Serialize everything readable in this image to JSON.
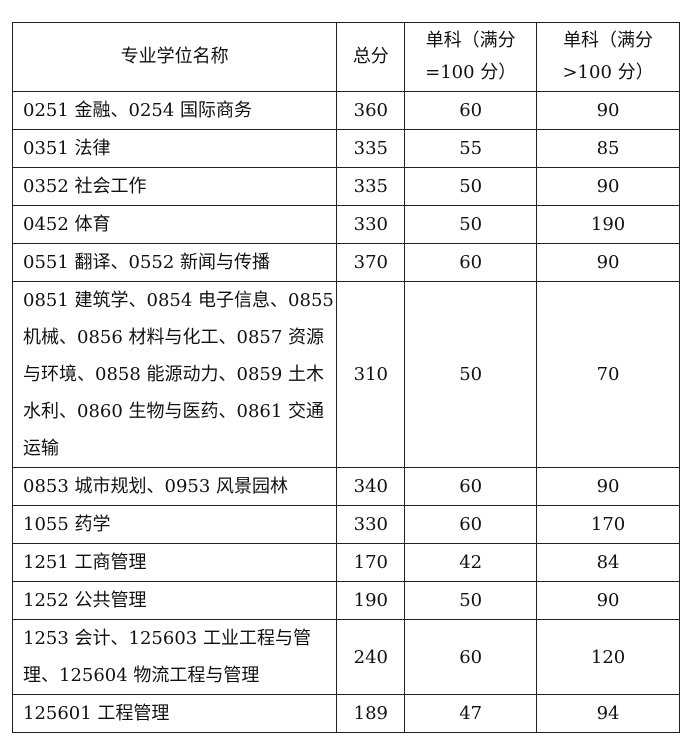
{
  "headers": [
    "专业学位名称",
    "总分",
    "单科（满分=100 分）",
    "单科（满分>100 分）"
  ],
  "rows": [
    {
      "name": "0251 金融、0254 国际商务",
      "total": "360",
      "single100": "60",
      "singleOver100": "90"
    },
    {
      "name": "0351 法律",
      "total": "335",
      "single100": "55",
      "singleOver100": "85"
    },
    {
      "name": "0352 社会工作",
      "total": "335",
      "single100": "50",
      "singleOver100": "90"
    },
    {
      "name": "0452 体育",
      "total": "330",
      "single100": "50",
      "singleOver100": "190"
    },
    {
      "name": "0551 翻译、0552 新闻与传播",
      "total": "370",
      "single100": "60",
      "singleOver100": "90"
    },
    {
      "name": "0851 建筑学、0854 电子信息、0855 机械、0856 材料与化工、0857 资源与环境、0858 能源动力、0859 土木水利、0860 生物与医药、0861 交通运输",
      "total": "310",
      "single100": "50",
      "singleOver100": "70"
    },
    {
      "name": "0853 城市规划、0953 风景园林",
      "total": "340",
      "single100": "60",
      "singleOver100": "90"
    },
    {
      "name": "1055 药学",
      "total": "330",
      "single100": "60",
      "singleOver100": "170"
    },
    {
      "name": "1251 工商管理",
      "total": "170",
      "single100": "42",
      "singleOver100": "84"
    },
    {
      "name": "1252 公共管理",
      "total": "190",
      "single100": "50",
      "singleOver100": "90"
    },
    {
      "name": "1253 会计、125603 工业工程与管理、125604 物流工程与管理",
      "total": "240",
      "single100": "60",
      "singleOver100": "120"
    },
    {
      "name": "125601 工程管理",
      "total": "189",
      "single100": "47",
      "singleOver100": "94"
    }
  ]
}
